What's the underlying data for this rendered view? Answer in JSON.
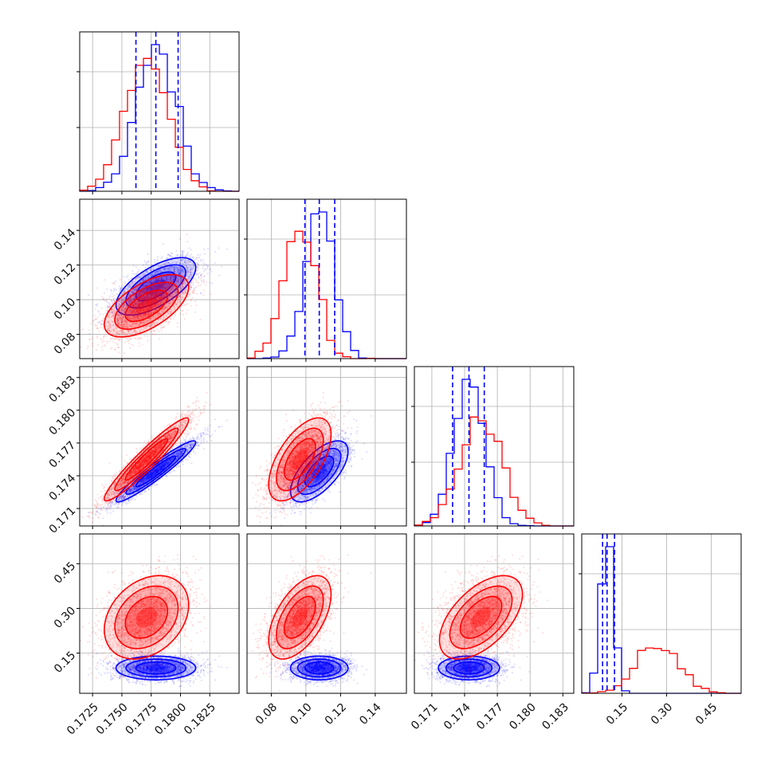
{
  "chart_data": {
    "type": "corner",
    "series": [
      {
        "color": "#0000ff",
        "params": [
          {
            "mean": 0.1779,
            "std": 0.0017
          },
          {
            "mean": 0.1077,
            "std": 0.0083
          },
          {
            "mean": 0.1744,
            "std": 0.0014
          },
          {
            "mean": 0.1,
            "std": 0.02
          }
        ],
        "quantiles": [
          [
            0.1762,
            0.1779,
            0.1798
          ],
          [
            0.0994,
            0.1077,
            0.1166
          ],
          [
            0.1729,
            0.1744,
            0.1758
          ],
          [
            0.085,
            0.1,
            0.125
          ]
        ],
        "correlations": [
          [
            0,
            1,
            0.65
          ],
          [
            0,
            2,
            0.95
          ],
          [
            1,
            2,
            0.65
          ],
          [
            0,
            3,
            0.0
          ],
          [
            1,
            3,
            0.0
          ],
          [
            2,
            3,
            0.0
          ]
        ]
      },
      {
        "color": "#ff0000",
        "params": [
          {
            "mean": 0.1771,
            "std": 0.0018
          },
          {
            "mean": 0.0965,
            "std": 0.009
          },
          {
            "mean": 0.1755,
            "std": 0.0019
          },
          {
            "mean": 0.27,
            "std": 0.07
          }
        ],
        "correlations": [
          [
            0,
            1,
            0.6
          ],
          [
            0,
            2,
            0.95
          ],
          [
            1,
            2,
            0.6
          ],
          [
            0,
            3,
            0.3
          ],
          [
            1,
            3,
            0.55
          ],
          [
            2,
            3,
            0.55
          ]
        ]
      }
    ],
    "axes": [
      {
        "range": [
          0.1714,
          0.185
        ],
        "ticks": [
          "0.1725",
          "0.1750",
          "0.1775",
          "0.1800",
          "0.1825"
        ],
        "tick_values": [
          0.1725,
          0.175,
          0.1775,
          0.18,
          0.1825
        ]
      },
      {
        "range": [
          0.066,
          0.158
        ],
        "ticks": [
          "0.08",
          "0.10",
          "0.12",
          "0.14"
        ],
        "tick_values": [
          0.08,
          0.1,
          0.12,
          0.14
        ]
      },
      {
        "range": [
          0.1694,
          0.184
        ],
        "ticks": [
          "0.171",
          "0.174",
          "0.177",
          "0.180",
          "0.183"
        ],
        "tick_values": [
          0.171,
          0.174,
          0.177,
          0.18,
          0.183
        ]
      },
      {
        "range": [
          0.015,
          0.55
        ],
        "ticks": [
          "0.15",
          "0.30",
          "0.45"
        ],
        "tick_values": [
          0.15,
          0.3,
          0.45
        ]
      }
    ],
    "grid": true
  }
}
